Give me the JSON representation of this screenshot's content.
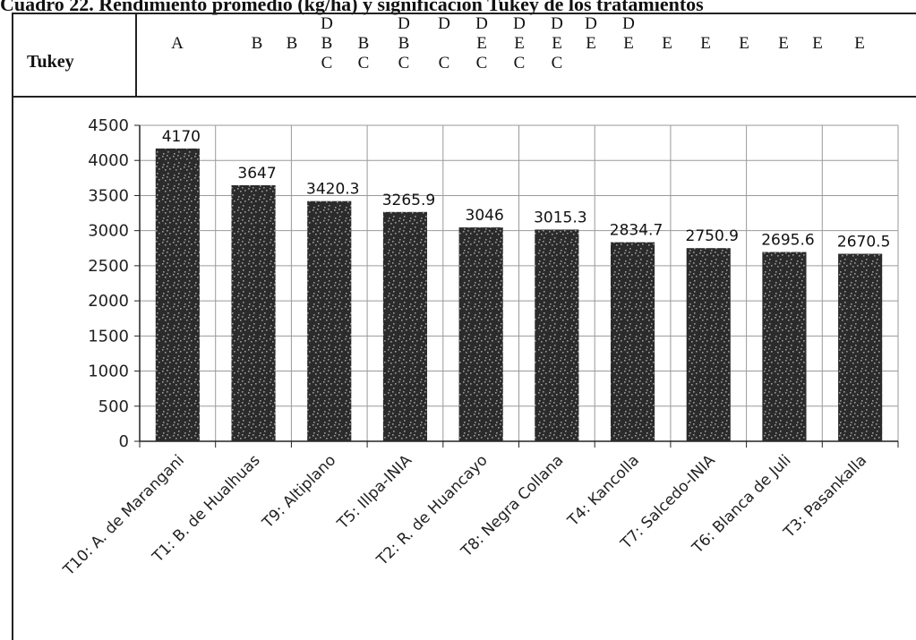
{
  "page_title": "Cuadro 22. Rendimiento promedio (kg/ha) y significación Tukey de los tratamientos",
  "tukey": {
    "label": "Tukey",
    "columns": [
      [
        "",
        "A",
        ""
      ],
      [
        "",
        "B",
        ""
      ],
      [
        "",
        "B",
        ""
      ],
      [
        "D",
        "B",
        "C"
      ],
      [
        "",
        "B",
        "C"
      ],
      [
        "D",
        "B",
        "C"
      ],
      [
        "D",
        "",
        "C"
      ],
      [
        "D",
        "E",
        "C"
      ],
      [
        "D",
        "E",
        "C"
      ],
      [
        "D",
        "E",
        "C"
      ],
      [
        "D",
        "E",
        ""
      ],
      [
        "D",
        "E",
        ""
      ],
      [
        "",
        "E",
        ""
      ],
      [
        "",
        "E",
        ""
      ],
      [
        "",
        "E",
        ""
      ],
      [
        "",
        "E",
        ""
      ],
      [
        "",
        "E",
        ""
      ],
      [
        "",
        "E",
        ""
      ]
    ]
  },
  "chart_data": {
    "type": "bar",
    "categories": [
      "T10: A. de Marangani",
      "T1: B. de Hualhuas",
      "T9: Altiplano",
      "T5: Illpa-INIA",
      "T2: R. de Huancayo",
      "T8: Negra Collana",
      "T4: Kancolla",
      "T7: Salcedo-INIA",
      "T6: Blanca de Juli",
      "T3: Pasankalla"
    ],
    "values": [
      4170,
      3647,
      3420.3,
      3265.9,
      3046,
      3015.3,
      2834.7,
      2750.9,
      2695.6,
      2670.5
    ],
    "value_labels": [
      "4170",
      "3647",
      "3420.3",
      "3265.9",
      "3046",
      "3015.3",
      "2834.7",
      "2750.9",
      "2695.6",
      "2670.5"
    ],
    "ylim": [
      0,
      4500
    ],
    "yticks": [
      "0",
      "500",
      "1000",
      "1500",
      "2000",
      "2500",
      "3000",
      "3500",
      "4000",
      "4500"
    ],
    "grid": true,
    "bar_color": "#2b2b2b",
    "speckle_color": "#9a9a9a"
  }
}
